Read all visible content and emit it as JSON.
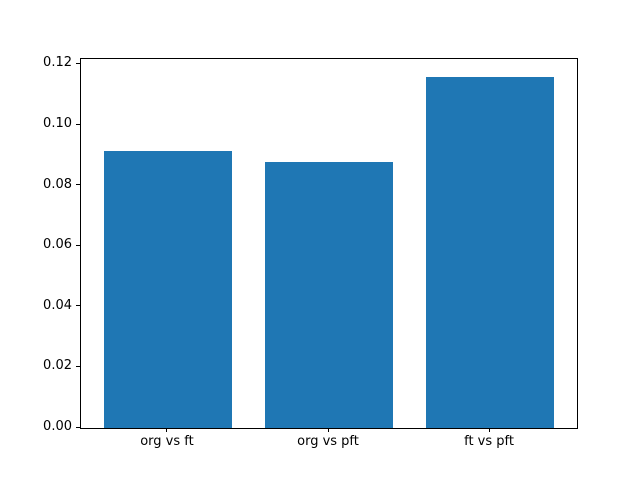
{
  "chart_data": {
    "type": "bar",
    "title": "",
    "xlabel": "",
    "ylabel": "",
    "categories": [
      "org vs ft",
      "org vs pft",
      "ft vs pft"
    ],
    "values": [
      0.0914,
      0.0878,
      0.116
    ],
    "bar_color": "#1f77b4",
    "bar_width": 0.8,
    "ylim": [
      0,
      0.1218
    ],
    "xlim": [
      -0.54,
      2.54
    ],
    "yticks": [
      {
        "value": 0.0,
        "label": "0.00"
      },
      {
        "value": 0.02,
        "label": "0.02"
      },
      {
        "value": 0.04,
        "label": "0.04"
      },
      {
        "value": 0.06,
        "label": "0.06"
      },
      {
        "value": 0.08,
        "label": "0.08"
      },
      {
        "value": 0.1,
        "label": "0.10"
      },
      {
        "value": 0.12,
        "label": "0.12"
      }
    ],
    "grid": false,
    "legend": null,
    "spine_color": "#000000",
    "tick_text_color": "#000000"
  }
}
